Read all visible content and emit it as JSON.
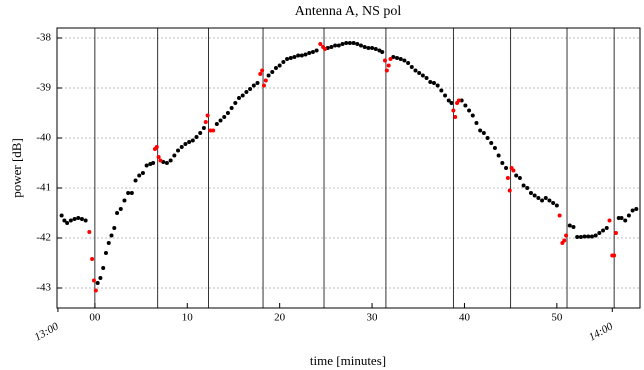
{
  "chart_data": {
    "type": "scatter",
    "title": "Antenna A, NS pol",
    "x_label": "time [minutes]",
    "y_label": "power [dB]",
    "xlim": [
      -4.1,
      59
    ],
    "ylim": [
      -43.4,
      -37.8
    ],
    "xticks": [
      {
        "value": 0,
        "label": "00"
      },
      10,
      20,
      30,
      40,
      50
    ],
    "hour_ticks": [
      {
        "value": -4,
        "label": "13:00"
      },
      {
        "value": 56,
        "label": "14:00"
      }
    ],
    "yticks": [
      -43,
      -42,
      -41,
      -40,
      -39,
      -38
    ],
    "grid": true,
    "vlines": [
      0,
      6.8,
      12.3,
      18.2,
      24.8,
      31.5,
      38.8,
      45,
      51.1,
      56.2
    ],
    "series": [
      {
        "color": "#000000",
        "x": [
          -3.6,
          -3.3,
          -3,
          -2.6,
          -2.2,
          -1.8,
          -1.4,
          -1,
          0.3,
          0.6,
          0.9,
          1.2,
          1.5,
          1.8,
          2.1,
          2.4,
          2.8,
          3.2,
          3.6,
          4.0,
          4.4,
          4.8,
          5.2,
          5.6,
          6.0,
          6.3,
          7.4,
          7.8,
          8.2,
          8.6,
          9.0,
          9.4,
          9.8,
          10.2,
          10.6,
          11,
          11.4,
          11.8,
          13.2,
          13.6,
          14,
          14.4,
          14.8,
          15.2,
          15.6,
          16,
          16.4,
          16.8,
          17.2,
          17.6,
          18.8,
          19.2,
          19.6,
          20,
          20.4,
          20.8,
          21.2,
          21.6,
          22,
          22.4,
          22.8,
          23.2,
          23.6,
          24,
          25.2,
          25.6,
          26,
          26.4,
          26.8,
          27.2,
          27.6,
          28,
          28.4,
          28.8,
          29.2,
          29.6,
          30,
          30.4,
          30.8,
          31.1,
          32.3,
          32.7,
          33.1,
          33.5,
          33.9,
          34.3,
          34.7,
          35.1,
          35.5,
          35.9,
          36.3,
          36.7,
          37.1,
          37.5,
          37.9,
          38.3,
          38.6,
          39.7,
          40.1,
          40.5,
          40.9,
          41.3,
          41.7,
          42.1,
          42.5,
          42.9,
          43.3,
          43.7,
          44.1,
          44.5,
          45.6,
          46,
          46.4,
          46.8,
          47.2,
          47.6,
          48,
          48.4,
          48.8,
          49.2,
          49.6,
          50,
          51.4,
          51.8,
          52.2,
          52.6,
          53,
          53.4,
          53.8,
          54.2,
          54.6,
          55,
          55.4,
          56.7,
          57,
          57.4,
          57.8,
          58.2,
          58.6
        ],
        "values": [
          -41.55,
          -41.65,
          -41.7,
          -41.65,
          -41.62,
          -41.6,
          -41.62,
          -41.65,
          -42.9,
          -42.8,
          -42.6,
          -42.3,
          -42.1,
          -41.95,
          -41.8,
          -41.5,
          -41.42,
          -41.25,
          -41.1,
          -41.1,
          -40.85,
          -40.75,
          -40.7,
          -40.55,
          -40.52,
          -40.5,
          -40.48,
          -40.5,
          -40.45,
          -40.35,
          -40.25,
          -40.18,
          -40.12,
          -40.08,
          -40.05,
          -39.98,
          -39.9,
          -39.8,
          -39.72,
          -39.65,
          -39.58,
          -39.5,
          -39.4,
          -39.3,
          -39.2,
          -39.15,
          -39.08,
          -39.02,
          -38.95,
          -38.9,
          -38.75,
          -38.68,
          -38.6,
          -38.55,
          -38.48,
          -38.42,
          -38.4,
          -38.38,
          -38.35,
          -38.35,
          -38.33,
          -38.3,
          -38.28,
          -38.25,
          -38.2,
          -38.18,
          -38.15,
          -38.15,
          -38.12,
          -38.1,
          -38.1,
          -38.1,
          -38.12,
          -38.15,
          -38.18,
          -38.2,
          -38.2,
          -38.22,
          -38.25,
          -38.28,
          -38.38,
          -38.4,
          -38.42,
          -38.45,
          -38.5,
          -38.58,
          -38.65,
          -38.7,
          -38.75,
          -38.8,
          -38.88,
          -38.9,
          -38.95,
          -39.05,
          -39.15,
          -39.25,
          -39.3,
          -39.25,
          -39.35,
          -39.45,
          -39.55,
          -39.7,
          -39.85,
          -39.9,
          -40.0,
          -40.1,
          -40.2,
          -40.35,
          -40.5,
          -40.6,
          -40.75,
          -40.8,
          -40.95,
          -41.0,
          -41.1,
          -41.15,
          -41.2,
          -41.25,
          -41.2,
          -41.25,
          -41.3,
          -41.35,
          -41.75,
          -41.78,
          -41.98,
          -41.98,
          -41.97,
          -41.97,
          -41.97,
          -41.95,
          -41.9,
          -41.85,
          -41.8,
          -41.6,
          -41.6,
          -41.65,
          -41.55,
          -41.45,
          -41.42
        ]
      },
      {
        "color": "#ff0000",
        "x": [
          -0.6,
          -0.3,
          -0.1,
          0.1,
          6.5,
          6.7,
          6.9,
          7.1,
          12.0,
          12.2,
          12.5,
          12.8,
          17.9,
          18.1,
          18.3,
          18.5,
          24.4,
          24.7,
          24.9,
          31.4,
          31.6,
          31.8,
          32,
          38.8,
          39,
          39.2,
          39.4,
          44.7,
          44.9,
          45.1,
          45.3,
          50.3,
          50.6,
          50.8,
          51.0,
          55.7,
          56,
          56.2,
          56.4
        ],
        "values": [
          -41.88,
          -42.42,
          -42.85,
          -43.05,
          -40.22,
          -40.18,
          -40.38,
          -40.45,
          -39.68,
          -39.55,
          -39.85,
          -39.85,
          -38.72,
          -38.65,
          -38.95,
          -38.85,
          -38.12,
          -38.18,
          -38.22,
          -38.45,
          -38.65,
          -38.55,
          -38.42,
          -39.45,
          -39.58,
          -39.3,
          -39.25,
          -40.8,
          -41.05,
          -40.6,
          -40.65,
          -41.55,
          -42.1,
          -42.05,
          -41.95,
          -41.65,
          -42.35,
          -42.35,
          -41.9
        ]
      }
    ]
  }
}
